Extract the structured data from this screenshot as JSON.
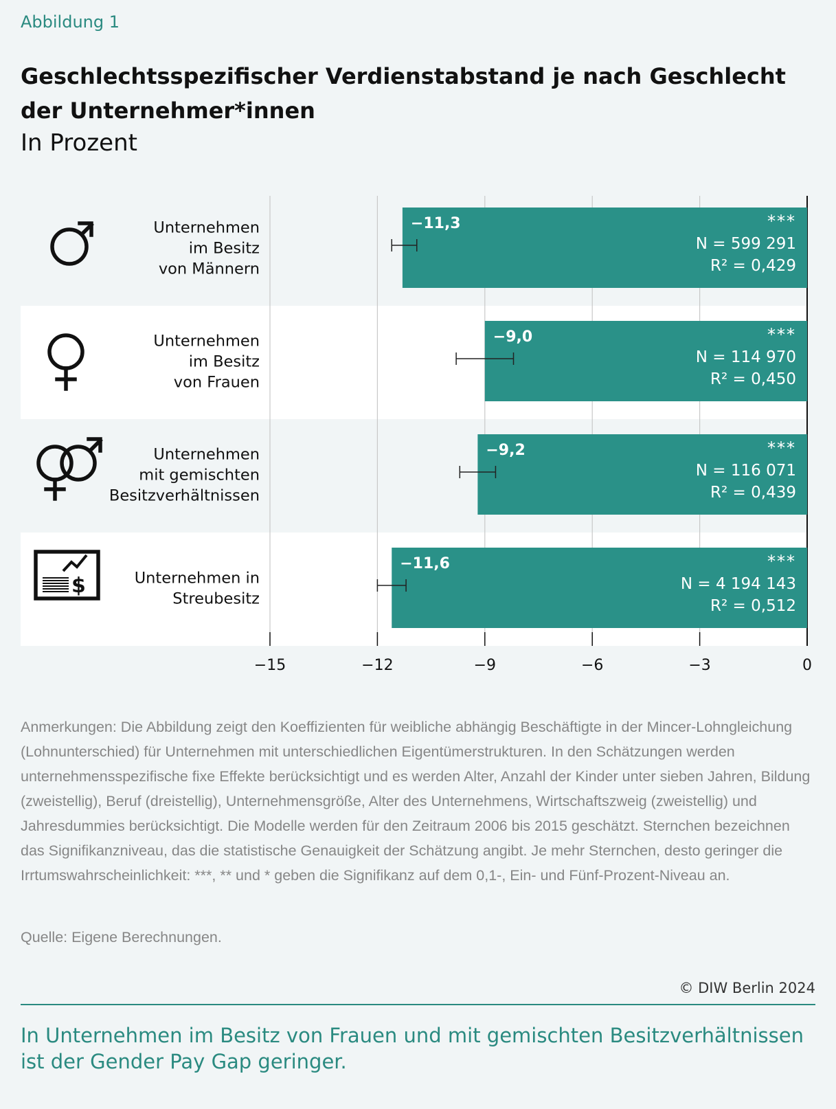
{
  "header": {
    "figure_label": "Abbildung 1",
    "title": "Geschlechtsspezifischer Verdienstabstand je nach Geschlecht der Unternehmer*innen",
    "subtitle": "In Prozent"
  },
  "chart_data": {
    "type": "bar",
    "orientation": "horizontal",
    "unit": "In Prozent",
    "xlim": [
      -15,
      0
    ],
    "xticks": [
      -15,
      -12,
      -9,
      -6,
      -3,
      0
    ],
    "xtick_labels": [
      "−15",
      "−12",
      "−9",
      "−6",
      "−3",
      "0"
    ],
    "grid": true,
    "bar_color": "#2a9188",
    "categories": [
      {
        "label_lines": [
          "Unternehmen",
          "im Besitz",
          "von Männern"
        ],
        "icon": "male-symbol-icon",
        "value": -11.3,
        "value_label": "−11,3",
        "ci": [
          -11.6,
          -10.9
        ],
        "significance": "***",
        "n_label": "N = 599 291",
        "r2_label": "R² = 0,429"
      },
      {
        "label_lines": [
          "Unternehmen",
          "im Besitz",
          "von Frauen"
        ],
        "icon": "female-symbol-icon",
        "value": -9.0,
        "value_label": "−9,0",
        "ci": [
          -9.8,
          -8.2
        ],
        "significance": "***",
        "n_label": "N = 114 970",
        "r2_label": "R² = 0,450"
      },
      {
        "label_lines": [
          "Unternehmen",
          "mit gemischten",
          "Besitzverhältnissen"
        ],
        "icon": "mixed-gender-symbol-icon",
        "value": -9.2,
        "value_label": "−9,2",
        "ci": [
          -9.7,
          -8.7
        ],
        "significance": "***",
        "n_label": "N = 116 071",
        "r2_label": "R² = 0,439"
      },
      {
        "label_lines": [
          "Unternehmen in",
          "Streubesitz"
        ],
        "icon": "stock-certificate-icon",
        "value": -11.6,
        "value_label": "−11,6",
        "ci": [
          -12.0,
          -11.2
        ],
        "significance": "***",
        "n_label": "N = 4 194 143",
        "r2_label": "R² = 0,512"
      }
    ]
  },
  "notes": "Anmerkungen: Die Abbildung zeigt den Koeffizienten für weibliche abhängig Beschäftigte in der Mincer-Lohngleichung (Lohnunterschied) für Unternehmen mit unterschiedlichen Eigentümerstrukturen. In den Schätzungen werden unternehmensspezifische fixe Effekte berücksichtigt und es werden Alter, Anzahl der Kinder unter sieben Jahren, Bildung (zweistellig), Beruf (dreistellig), Unternehmensgröße, Alter des Unternehmens, Wirtschaftszweig (zweistellig) und Jahresdummies berücksichtigt. Die Modelle werden für den Zeitraum 2006 bis 2015 geschätzt. Sternchen bezeichnen das Signifikanzniveau, das die statistische Genauigkeit der Schätzung angibt. Je mehr Sternchen, desto geringer die Irrtumswahrscheinlichkeit: ***, ** und * geben die Signifikanz auf dem 0,1-, Ein- und Fünf-Prozent-Niveau an.",
  "source": "Quelle: Eigene Berechnungen.",
  "copyright": "© DIW Berlin 2024",
  "takeaway": "In Unternehmen im Besitz von Frauen und mit gemischten Besitzverhältnissen ist der Gender Pay Gap geringer."
}
